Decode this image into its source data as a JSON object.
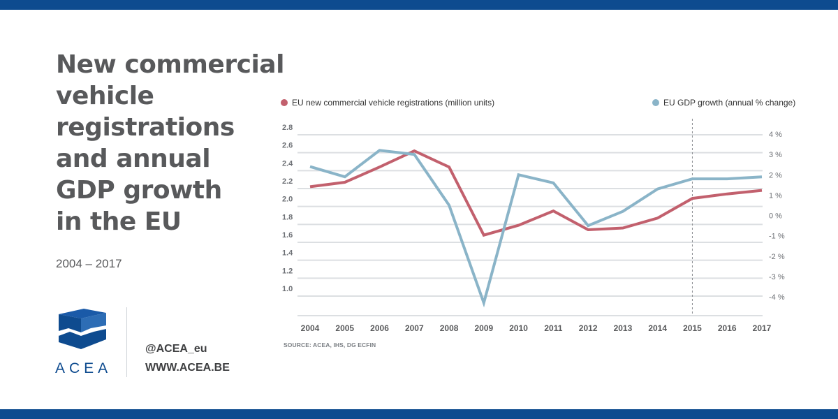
{
  "title_lines": [
    "New commercial",
    "vehicle",
    "registrations",
    "and annual",
    "GDP growth",
    "in the EU"
  ],
  "subtitle": "2004 – 2017",
  "brand": {
    "logo_text": "ACEA",
    "social": "@ACEA_eu",
    "website": "WWW.ACEA.BE"
  },
  "source": "SOURCE: ACEA, IHS, DG ECFIN",
  "colors": {
    "registrations": "#c2606d",
    "gdp": "#8ab4c8",
    "brand": "#0e4b8f",
    "text": "#58595b"
  },
  "chart_data": {
    "type": "line",
    "x": [
      "2004",
      "2005",
      "2006",
      "2007",
      "2008",
      "2009",
      "2010",
      "2011",
      "2012",
      "2013",
      "2014",
      "2015",
      "2016",
      "2017"
    ],
    "series": [
      {
        "name": "EU new commercial vehicle registrations (million units)",
        "axis": "left",
        "values": [
          2.22,
          2.27,
          2.44,
          2.62,
          2.44,
          1.68,
          1.79,
          1.95,
          1.74,
          1.76,
          1.87,
          2.09,
          2.14,
          2.18
        ]
      },
      {
        "name": "EU GDP growth (annual % change)",
        "axis": "right",
        "values": [
          2.4,
          1.9,
          3.2,
          3.0,
          0.5,
          -4.3,
          2.0,
          1.6,
          -0.5,
          0.2,
          1.3,
          1.8,
          1.8,
          1.9
        ]
      }
    ],
    "left_axis": {
      "ticks": [
        "2.8",
        "2.6",
        "2.4",
        "2.2",
        "2.0",
        "1.8",
        "1.6",
        "1.4",
        "1.2",
        "1.0"
      ],
      "ylim": [
        1.0,
        2.8
      ]
    },
    "right_axis": {
      "ticks": [
        "4 %",
        "3 %",
        "2 %",
        "1 %",
        "0 %",
        "-1 %",
        "-2 %",
        "-3 %",
        "-4 %"
      ],
      "ylim": [
        -4,
        4
      ]
    },
    "reference_line": "2015",
    "grid": true,
    "legend": "top"
  }
}
